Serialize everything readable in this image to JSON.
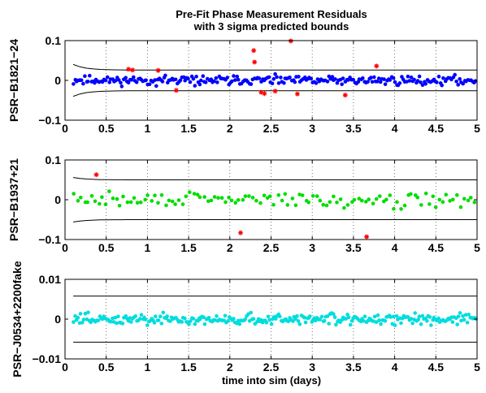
{
  "figure": {
    "title_line1": "Pre-Fit Phase Measurement Residuals",
    "title_line2": "with 3 sigma predicted bounds",
    "xlabel": "time into sim (days)"
  },
  "chart_data": [
    {
      "type": "scatter",
      "ylabel": "PSR−B1821−24",
      "xlim": [
        0,
        5
      ],
      "ylim": [
        -0.1,
        0.1
      ],
      "xticks": [
        0,
        0.5,
        1,
        1.5,
        2,
        2.5,
        3,
        3.5,
        4,
        4.5,
        5
      ],
      "xtick_labels": [
        "0",
        "0.5",
        "1",
        "1.5",
        "2",
        "2.5",
        "3",
        "3.5",
        "4",
        "4.5",
        "5"
      ],
      "yticks": [
        -0.1,
        0,
        0.1
      ],
      "ytick_labels": [
        "−0.1",
        "0",
        "0.1"
      ],
      "grid": "dotted vertical",
      "series_color": "#0000ff",
      "outlier_color": "#ff0000",
      "bound": 0.026,
      "bound_start": 0.04,
      "n_points": 250,
      "amplitude": 0.008,
      "seed": 11,
      "outliers": [
        {
          "x": 0.77,
          "y": 0.028
        },
        {
          "x": 0.82,
          "y": 0.026
        },
        {
          "x": 1.13,
          "y": 0.025
        },
        {
          "x": 1.35,
          "y": -0.025
        },
        {
          "x": 2.29,
          "y": 0.075
        },
        {
          "x": 2.3,
          "y": 0.046
        },
        {
          "x": 2.38,
          "y": -0.03
        },
        {
          "x": 2.42,
          "y": -0.033
        },
        {
          "x": 2.55,
          "y": -0.027
        },
        {
          "x": 2.74,
          "y": 0.099
        },
        {
          "x": 2.82,
          "y": -0.034
        },
        {
          "x": 3.4,
          "y": -0.037
        },
        {
          "x": 3.78,
          "y": 0.036
        }
      ]
    },
    {
      "type": "scatter",
      "ylabel": "PSR−B1937+21",
      "xlim": [
        0,
        5
      ],
      "ylim": [
        -0.1,
        0.1
      ],
      "xticks": [
        0,
        0.5,
        1,
        1.5,
        2,
        2.5,
        3,
        3.5,
        4,
        4.5,
        5
      ],
      "xtick_labels": [
        "0",
        "0.5",
        "1",
        "1.5",
        "2",
        "2.5",
        "3",
        "3.5",
        "4",
        "4.5",
        "5"
      ],
      "yticks": [
        -0.1,
        0,
        0.1
      ],
      "ytick_labels": [
        "−0.1",
        "0",
        "0.1"
      ],
      "grid": "dotted vertical",
      "series_color": "#00dd00",
      "outlier_color": "#ff0000",
      "bound": 0.05,
      "bound_start": 0.056,
      "n_points": 115,
      "amplitude": 0.013,
      "seed": 29,
      "outliers": [
        {
          "x": 0.38,
          "y": 0.063
        },
        {
          "x": 2.13,
          "y": -0.083
        },
        {
          "x": 3.66,
          "y": -0.093
        }
      ]
    },
    {
      "type": "scatter",
      "ylabel": "PSR−J0534+2200fake",
      "xlim": [
        0,
        5
      ],
      "ylim": [
        -0.01,
        0.01
      ],
      "xticks": [
        0,
        0.5,
        1,
        1.5,
        2,
        2.5,
        3,
        3.5,
        4,
        4.5,
        5
      ],
      "xtick_labels": [
        "0",
        "0.5",
        "1",
        "1.5",
        "2",
        "2.5",
        "3",
        "3.5",
        "4",
        "4.5",
        "5"
      ],
      "yticks": [
        -0.01,
        0,
        0.01
      ],
      "ytick_labels": [
        "−0.01",
        "0",
        "0.01"
      ],
      "grid": "dotted vertical",
      "series_color": "#00dddd",
      "outlier_color": "#ff0000",
      "bound": 0.0058,
      "bound_start": 0.0058,
      "n_points": 280,
      "amplitude": 0.00095,
      "seed": 47,
      "outliers": []
    }
  ]
}
